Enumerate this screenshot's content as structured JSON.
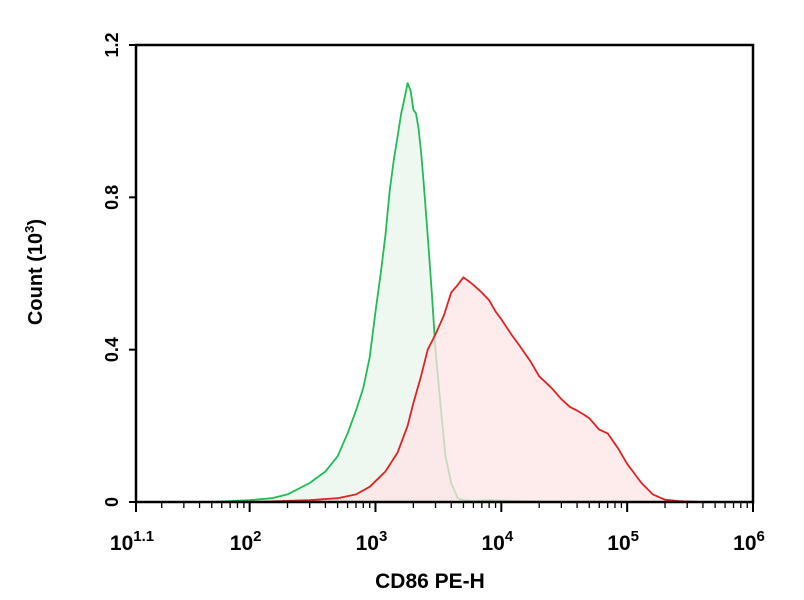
{
  "chart_data": {
    "type": "area",
    "xlabel": "CD86 PE-H",
    "ylabel": "Count (10",
    "ylabel_exp": "3",
    "ylabel_close": ")",
    "x_scale": "log",
    "xlim": [
      12.5,
      1000000
    ],
    "ylim": [
      0,
      1.2
    ],
    "grid": false,
    "x_ticks": [
      {
        "value": 12.5,
        "base": "10",
        "exp": "1.1"
      },
      {
        "value": 100,
        "base": "10",
        "exp": "2"
      },
      {
        "value": 1000,
        "base": "10",
        "exp": "3"
      },
      {
        "value": 10000,
        "base": "10",
        "exp": "4"
      },
      {
        "value": 100000,
        "base": "10",
        "exp": "5"
      },
      {
        "value": 1000000,
        "base": "10",
        "exp": "6"
      }
    ],
    "y_ticks": [
      {
        "value": 0,
        "label": "0"
      },
      {
        "value": 0.4,
        "label": "0.4"
      },
      {
        "value": 0.8,
        "label": "0.8"
      },
      {
        "value": 1.2,
        "label": "1.2"
      }
    ],
    "series": [
      {
        "color": "#22bb55",
        "fill": "#e8f6ec",
        "x": [
          20,
          50,
          100,
          150,
          200,
          300,
          400,
          500,
          600,
          700,
          800,
          900,
          1000,
          1100,
          1200,
          1300,
          1400,
          1500,
          1600,
          1700,
          1800,
          1900,
          2000,
          2100,
          2200,
          2300,
          2400,
          2600,
          2800,
          3000,
          3300,
          3600,
          4000,
          4500,
          5000,
          6000,
          8000,
          12000,
          20000,
          40000,
          100000
        ],
        "y": [
          0,
          0,
          0.005,
          0.01,
          0.02,
          0.05,
          0.08,
          0.12,
          0.18,
          0.24,
          0.3,
          0.38,
          0.5,
          0.6,
          0.7,
          0.82,
          0.9,
          0.96,
          1.02,
          1.06,
          1.1,
          1.08,
          1.03,
          1.02,
          0.98,
          0.92,
          0.85,
          0.7,
          0.55,
          0.4,
          0.25,
          0.12,
          0.05,
          0.01,
          0.005,
          0.003,
          0.005,
          0.003,
          0.001,
          0,
          0
        ]
      },
      {
        "color": "#e02222",
        "fill": "#fde4e4",
        "x": [
          100,
          300,
          500,
          700,
          900,
          1200,
          1500,
          1800,
          2000,
          2300,
          2600,
          3000,
          3500,
          4000,
          4500,
          5000,
          5500,
          6000,
          7000,
          8000,
          9000,
          10000,
          12000,
          14000,
          17000,
          20000,
          25000,
          30000,
          35000,
          40000,
          45000,
          50000,
          60000,
          70000,
          85000,
          100000,
          130000,
          160000,
          200000,
          260000,
          400000
        ],
        "y": [
          0,
          0.005,
          0.01,
          0.02,
          0.04,
          0.08,
          0.13,
          0.2,
          0.26,
          0.33,
          0.4,
          0.44,
          0.49,
          0.55,
          0.57,
          0.59,
          0.58,
          0.57,
          0.55,
          0.53,
          0.5,
          0.48,
          0.44,
          0.41,
          0.37,
          0.33,
          0.3,
          0.27,
          0.25,
          0.24,
          0.23,
          0.22,
          0.19,
          0.18,
          0.14,
          0.1,
          0.05,
          0.02,
          0.006,
          0.002,
          0
        ]
      }
    ]
  }
}
